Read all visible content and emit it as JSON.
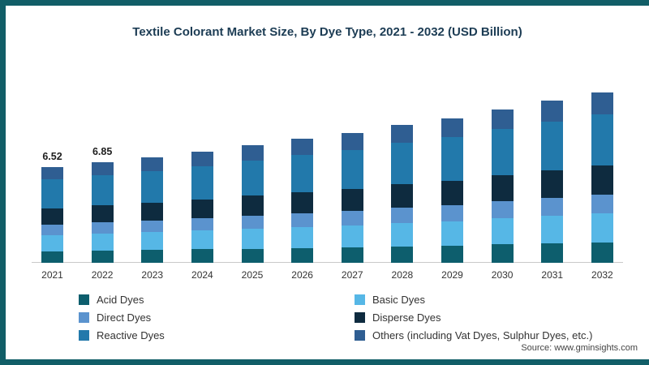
{
  "chart_data": {
    "type": "bar",
    "stacked": true,
    "title": "Textile Colorant Market Size, By Dye Type, 2021 - 2032 (USD Billion)",
    "categories": [
      "2021",
      "2022",
      "2023",
      "2024",
      "2025",
      "2026",
      "2027",
      "2028",
      "2029",
      "2030",
      "2031",
      "2032"
    ],
    "series": [
      {
        "name": "Acid Dyes",
        "color": "#0d5e6d",
        "values": [
          0.78,
          0.82,
          0.86,
          0.91,
          0.96,
          1.01,
          1.06,
          1.12,
          1.18,
          1.24,
          1.31,
          1.38
        ]
      },
      {
        "name": "Basic Dyes",
        "color": "#56b7e6",
        "values": [
          1.11,
          1.16,
          1.22,
          1.29,
          1.36,
          1.43,
          1.5,
          1.58,
          1.67,
          1.76,
          1.85,
          1.96
        ]
      },
      {
        "name": "Direct Dyes",
        "color": "#5b93ce",
        "values": [
          0.72,
          0.75,
          0.79,
          0.83,
          0.88,
          0.92,
          0.97,
          1.03,
          1.08,
          1.14,
          1.2,
          1.27
        ]
      },
      {
        "name": "Disperse Dyes",
        "color": "#0e2b3f",
        "values": [
          1.11,
          1.16,
          1.22,
          1.29,
          1.36,
          1.43,
          1.5,
          1.58,
          1.67,
          1.76,
          1.85,
          1.96
        ]
      },
      {
        "name": "Reactive Dyes",
        "color": "#2279ab",
        "values": [
          1.96,
          2.06,
          2.16,
          2.27,
          2.39,
          2.52,
          2.66,
          2.8,
          2.95,
          3.11,
          3.27,
          3.45
        ]
      },
      {
        "name": "Others (including Vat Dyes, Sulphur Dyes, etc.)",
        "color": "#2f5e92",
        "values": [
          0.85,
          0.89,
          0.94,
          0.99,
          1.04,
          1.09,
          1.15,
          1.21,
          1.27,
          1.34,
          1.41,
          1.5
        ]
      }
    ],
    "totals": [
      6.52,
      6.85,
      7.2,
      7.58,
      7.98,
      8.4,
      8.85,
      9.32,
      9.82,
      10.35,
      10.9,
      11.52
    ],
    "bar_labels": [
      "6.52",
      "6.85",
      "",
      "",
      "",
      "",
      "",
      "",
      "",
      "",
      "",
      ""
    ],
    "ylim": [
      0,
      12
    ],
    "xlabel": "",
    "ylabel": "",
    "grid": false,
    "legend_position": "bottom"
  },
  "source": {
    "prefix": "Source:",
    "url": "www.gminsights.com"
  },
  "colors": {
    "frame": "#115e67",
    "title_text": "#1c3c54",
    "axis_line": "#c9c9c9",
    "tick_text": "#333333",
    "legend_text": "#333333"
  }
}
